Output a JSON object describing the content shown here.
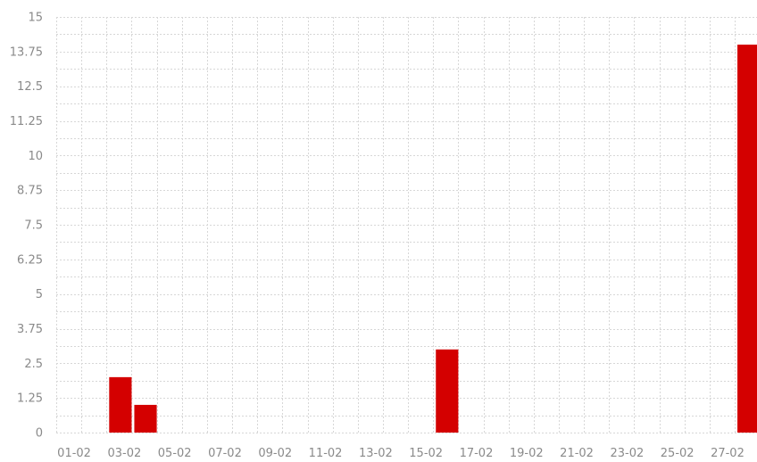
{
  "chart_data": {
    "type": "bar",
    "title": "",
    "xlabel": "",
    "ylabel": "",
    "ylim": [
      0,
      15
    ],
    "yticks": [
      "0",
      "1.25",
      "2.5",
      "3.75",
      "5",
      "6.25",
      "7.5",
      "8.75",
      "10",
      "11.25",
      "12.5",
      "13.75",
      "15"
    ],
    "ytick_values": [
      0,
      1.25,
      2.5,
      3.75,
      5,
      6.25,
      7.5,
      8.75,
      10,
      11.25,
      12.5,
      13.75,
      15
    ],
    "categories": [
      "01-02",
      "02-02",
      "03-02",
      "04-02",
      "05-02",
      "06-02",
      "07-02",
      "08-02",
      "09-02",
      "10-02",
      "11-02",
      "12-02",
      "13-02",
      "14-02",
      "15-02",
      "16-02",
      "17-02",
      "18-02",
      "19-02",
      "20-02",
      "21-02",
      "22-02",
      "23-02",
      "24-02",
      "25-02",
      "26-02",
      "27-02",
      "28-02"
    ],
    "xtick_labels": [
      "01-02",
      "03-02",
      "05-02",
      "07-02",
      "09-02",
      "11-02",
      "13-02",
      "15-02",
      "17-02",
      "19-02",
      "21-02",
      "23-02",
      "25-02",
      "27-02"
    ],
    "values": [
      0,
      0,
      2,
      1,
      0,
      0,
      0,
      0,
      0,
      0,
      0,
      0,
      0,
      0,
      0,
      3,
      0,
      0,
      0,
      0,
      0,
      0,
      0,
      0,
      0,
      0,
      0,
      14
    ],
    "color": "#d40000",
    "grid": true,
    "grid_style": "dotted",
    "legend": "none"
  }
}
